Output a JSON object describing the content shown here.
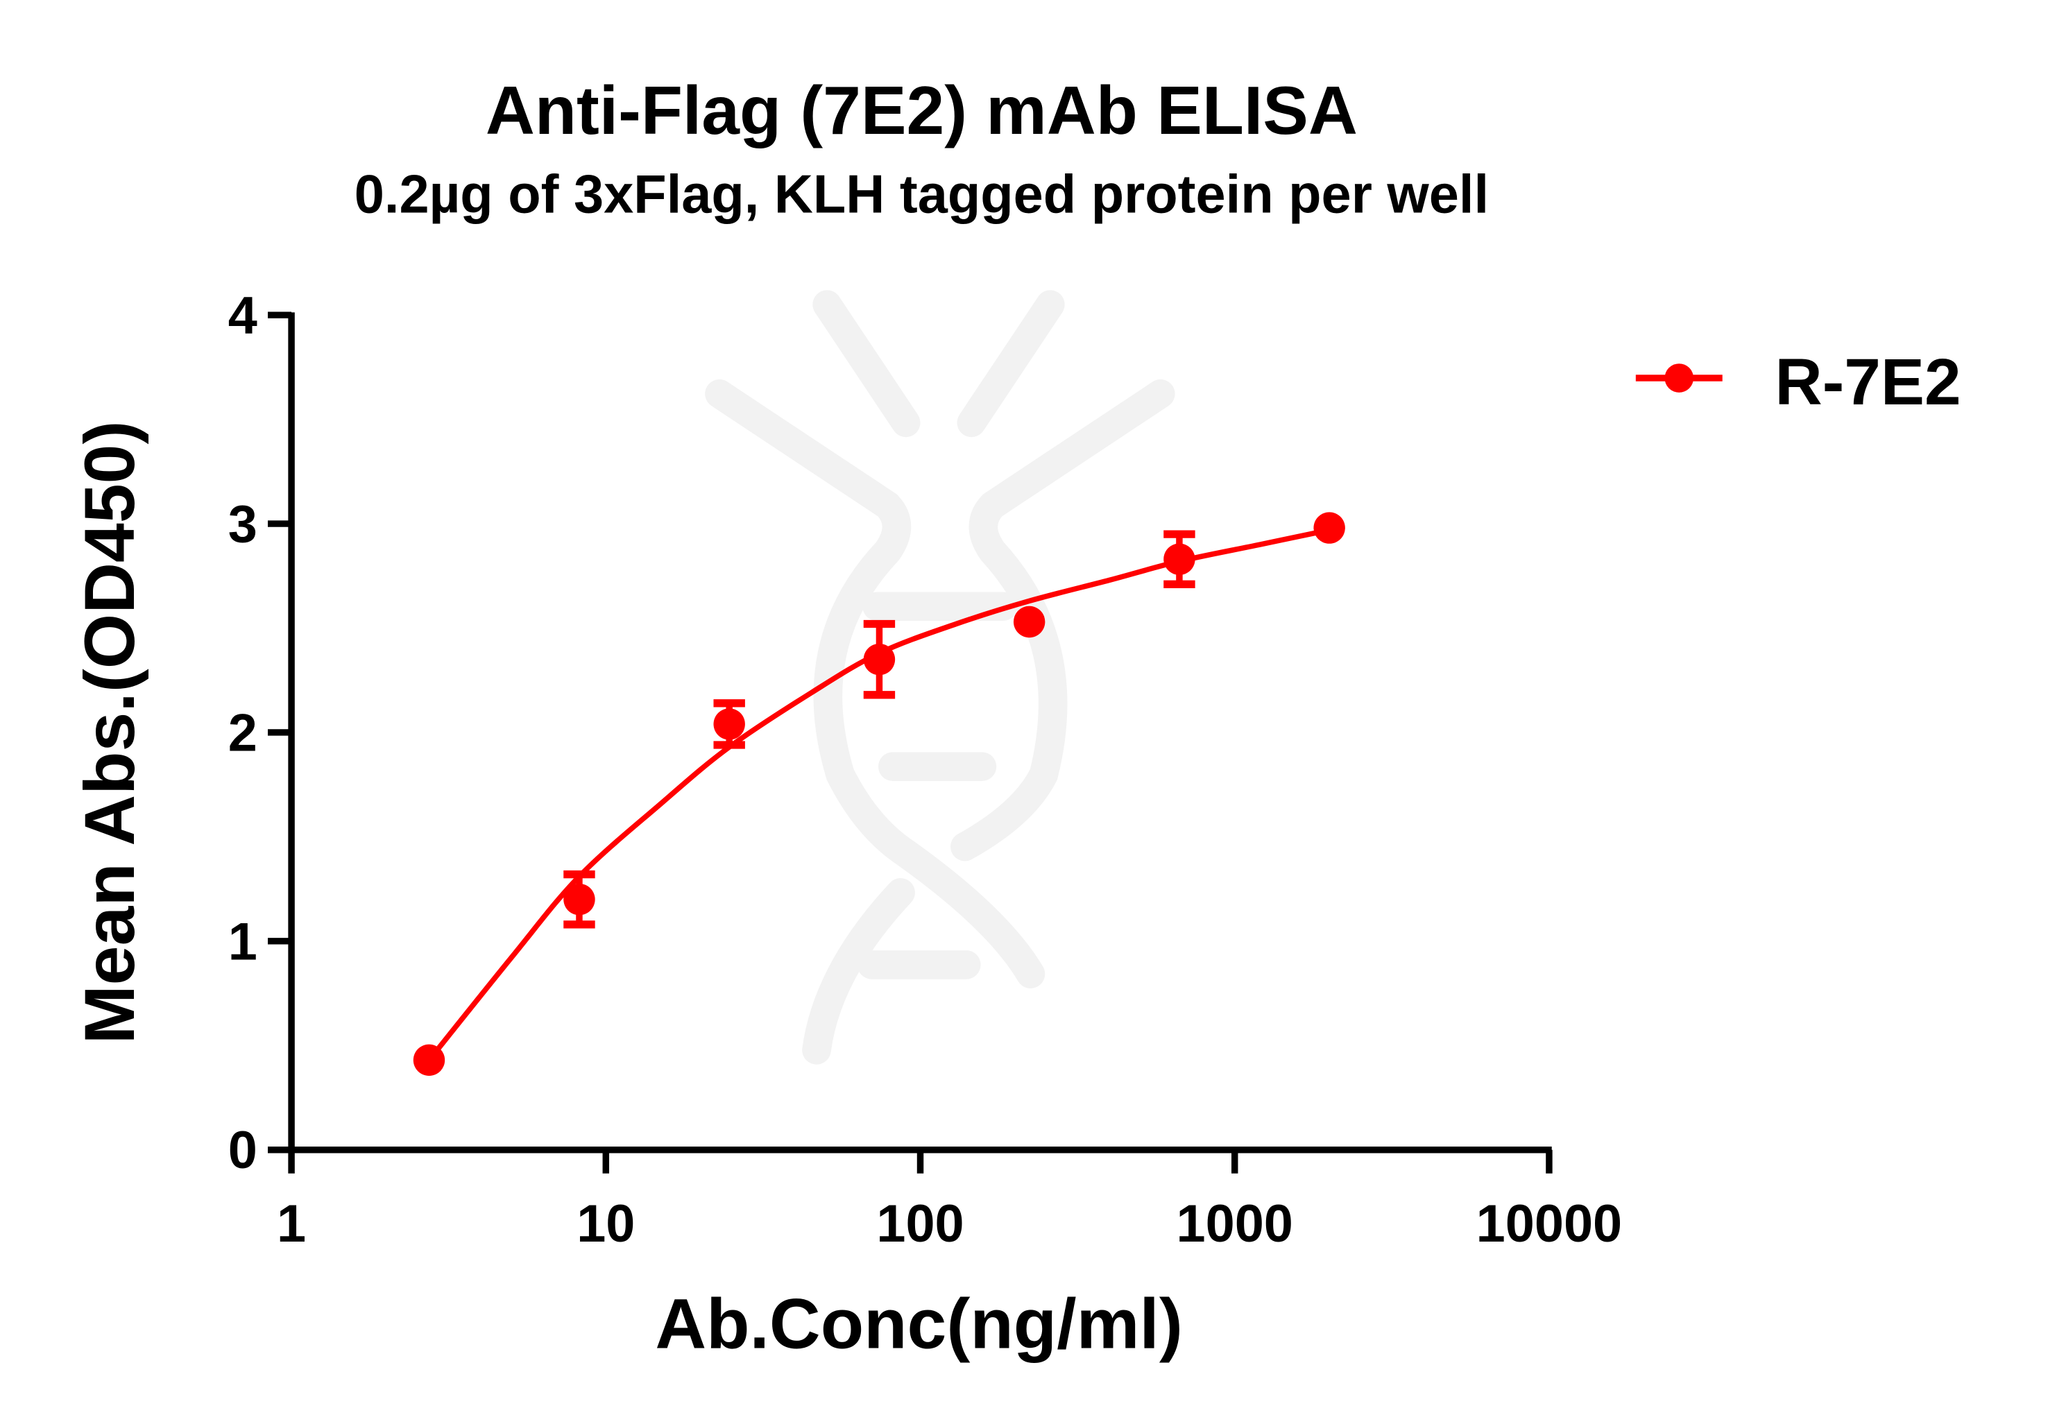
{
  "chart_data": {
    "type": "scatter",
    "title": "Anti-Flag (7E2) mAb ELISA",
    "subtitle": "0.2µg of 3xFlag, KLH tagged protein per well",
    "xlabel": "Ab.Conc(ng/ml)",
    "ylabel": "Mean Abs.(OD450)",
    "xscale": "log",
    "xlim": [
      1,
      10000
    ],
    "ylim": [
      0,
      4
    ],
    "xticks": [
      "1",
      "10",
      "100",
      "1000",
      "10000"
    ],
    "yticks": [
      "0",
      "1",
      "2",
      "3",
      "4"
    ],
    "grid": false,
    "legend_position": "top-right",
    "colors": {
      "series": "#ff0000",
      "axis": "#000000",
      "watermark": "#f2f2f2"
    },
    "series": [
      {
        "name": "R-7E2",
        "x": [
          2.74,
          8.23,
          24.69,
          74.07,
          222.2,
          666.7,
          2000
        ],
        "y": [
          0.43,
          1.2,
          2.04,
          2.35,
          2.53,
          2.83,
          2.98
        ],
        "error": [
          0,
          0.12,
          0.1,
          0.17,
          0,
          0.12,
          0
        ],
        "fit_curve": {
          "x": [
            2.74,
            5,
            8.23,
            15,
            24.69,
            45,
            74.07,
            130,
            222.2,
            400,
            666.7,
            1200,
            2000
          ],
          "y": [
            0.43,
            0.92,
            1.31,
            1.66,
            1.93,
            2.19,
            2.38,
            2.52,
            2.63,
            2.73,
            2.82,
            2.9,
            2.97
          ]
        }
      }
    ]
  }
}
